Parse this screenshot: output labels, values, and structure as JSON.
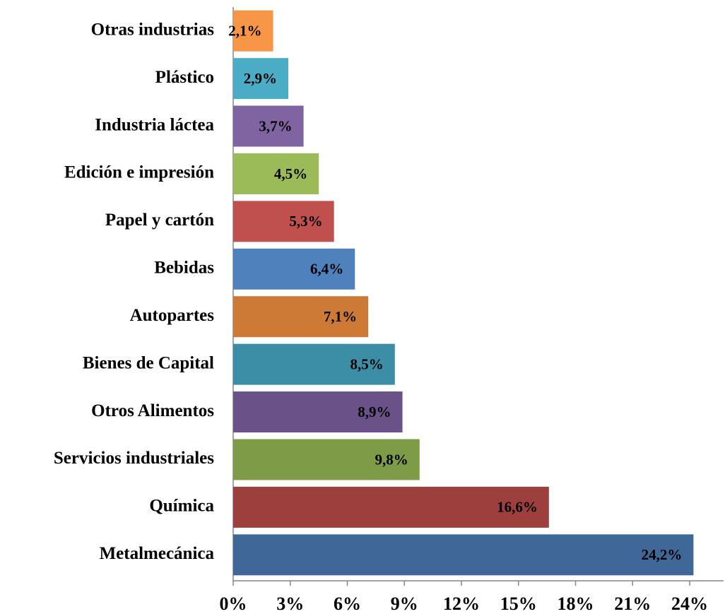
{
  "chart_data": {
    "type": "barh",
    "categories": [
      "Otras industrias",
      "Plástico",
      "Industria láctea",
      "Edición e impresión",
      "Papel y cartón",
      "Bebidas",
      "Autopartes",
      "Bienes de Capital",
      "Otros Alimentos",
      "Servicios industriales",
      "Química",
      "Metalmecánica"
    ],
    "values": [
      2.1,
      2.9,
      3.7,
      4.5,
      5.3,
      6.4,
      7.1,
      8.5,
      8.9,
      9.8,
      16.6,
      24.2
    ],
    "value_labels": [
      "2,1%",
      "2,9%",
      "3,7%",
      "4,5%",
      "5,3%",
      "6,4%",
      "7,1%",
      "8,5%",
      "8,9%",
      "9,8%",
      "16,6%",
      "24,2%"
    ],
    "colors": [
      "#f79646",
      "#4bacc6",
      "#8064a2",
      "#9bbb59",
      "#c0504d",
      "#4f81bd",
      "#cc7a36",
      "#3b8ea5",
      "#6a5188",
      "#7e9b48",
      "#9c3f3d",
      "#3f6797"
    ],
    "xlim": [
      0,
      24
    ],
    "xticks": [
      {
        "value": 0,
        "label": "0%"
      },
      {
        "value": 3,
        "label": "3%"
      },
      {
        "value": 6,
        "label": "6%"
      },
      {
        "value": 9,
        "label": "9%"
      },
      {
        "value": 12,
        "label": "12%"
      },
      {
        "value": 15,
        "label": "15%"
      },
      {
        "value": 18,
        "label": "18%"
      },
      {
        "value": 21,
        "label": "21%"
      },
      {
        "value": 24,
        "label": "24%"
      }
    ],
    "grid": false
  }
}
